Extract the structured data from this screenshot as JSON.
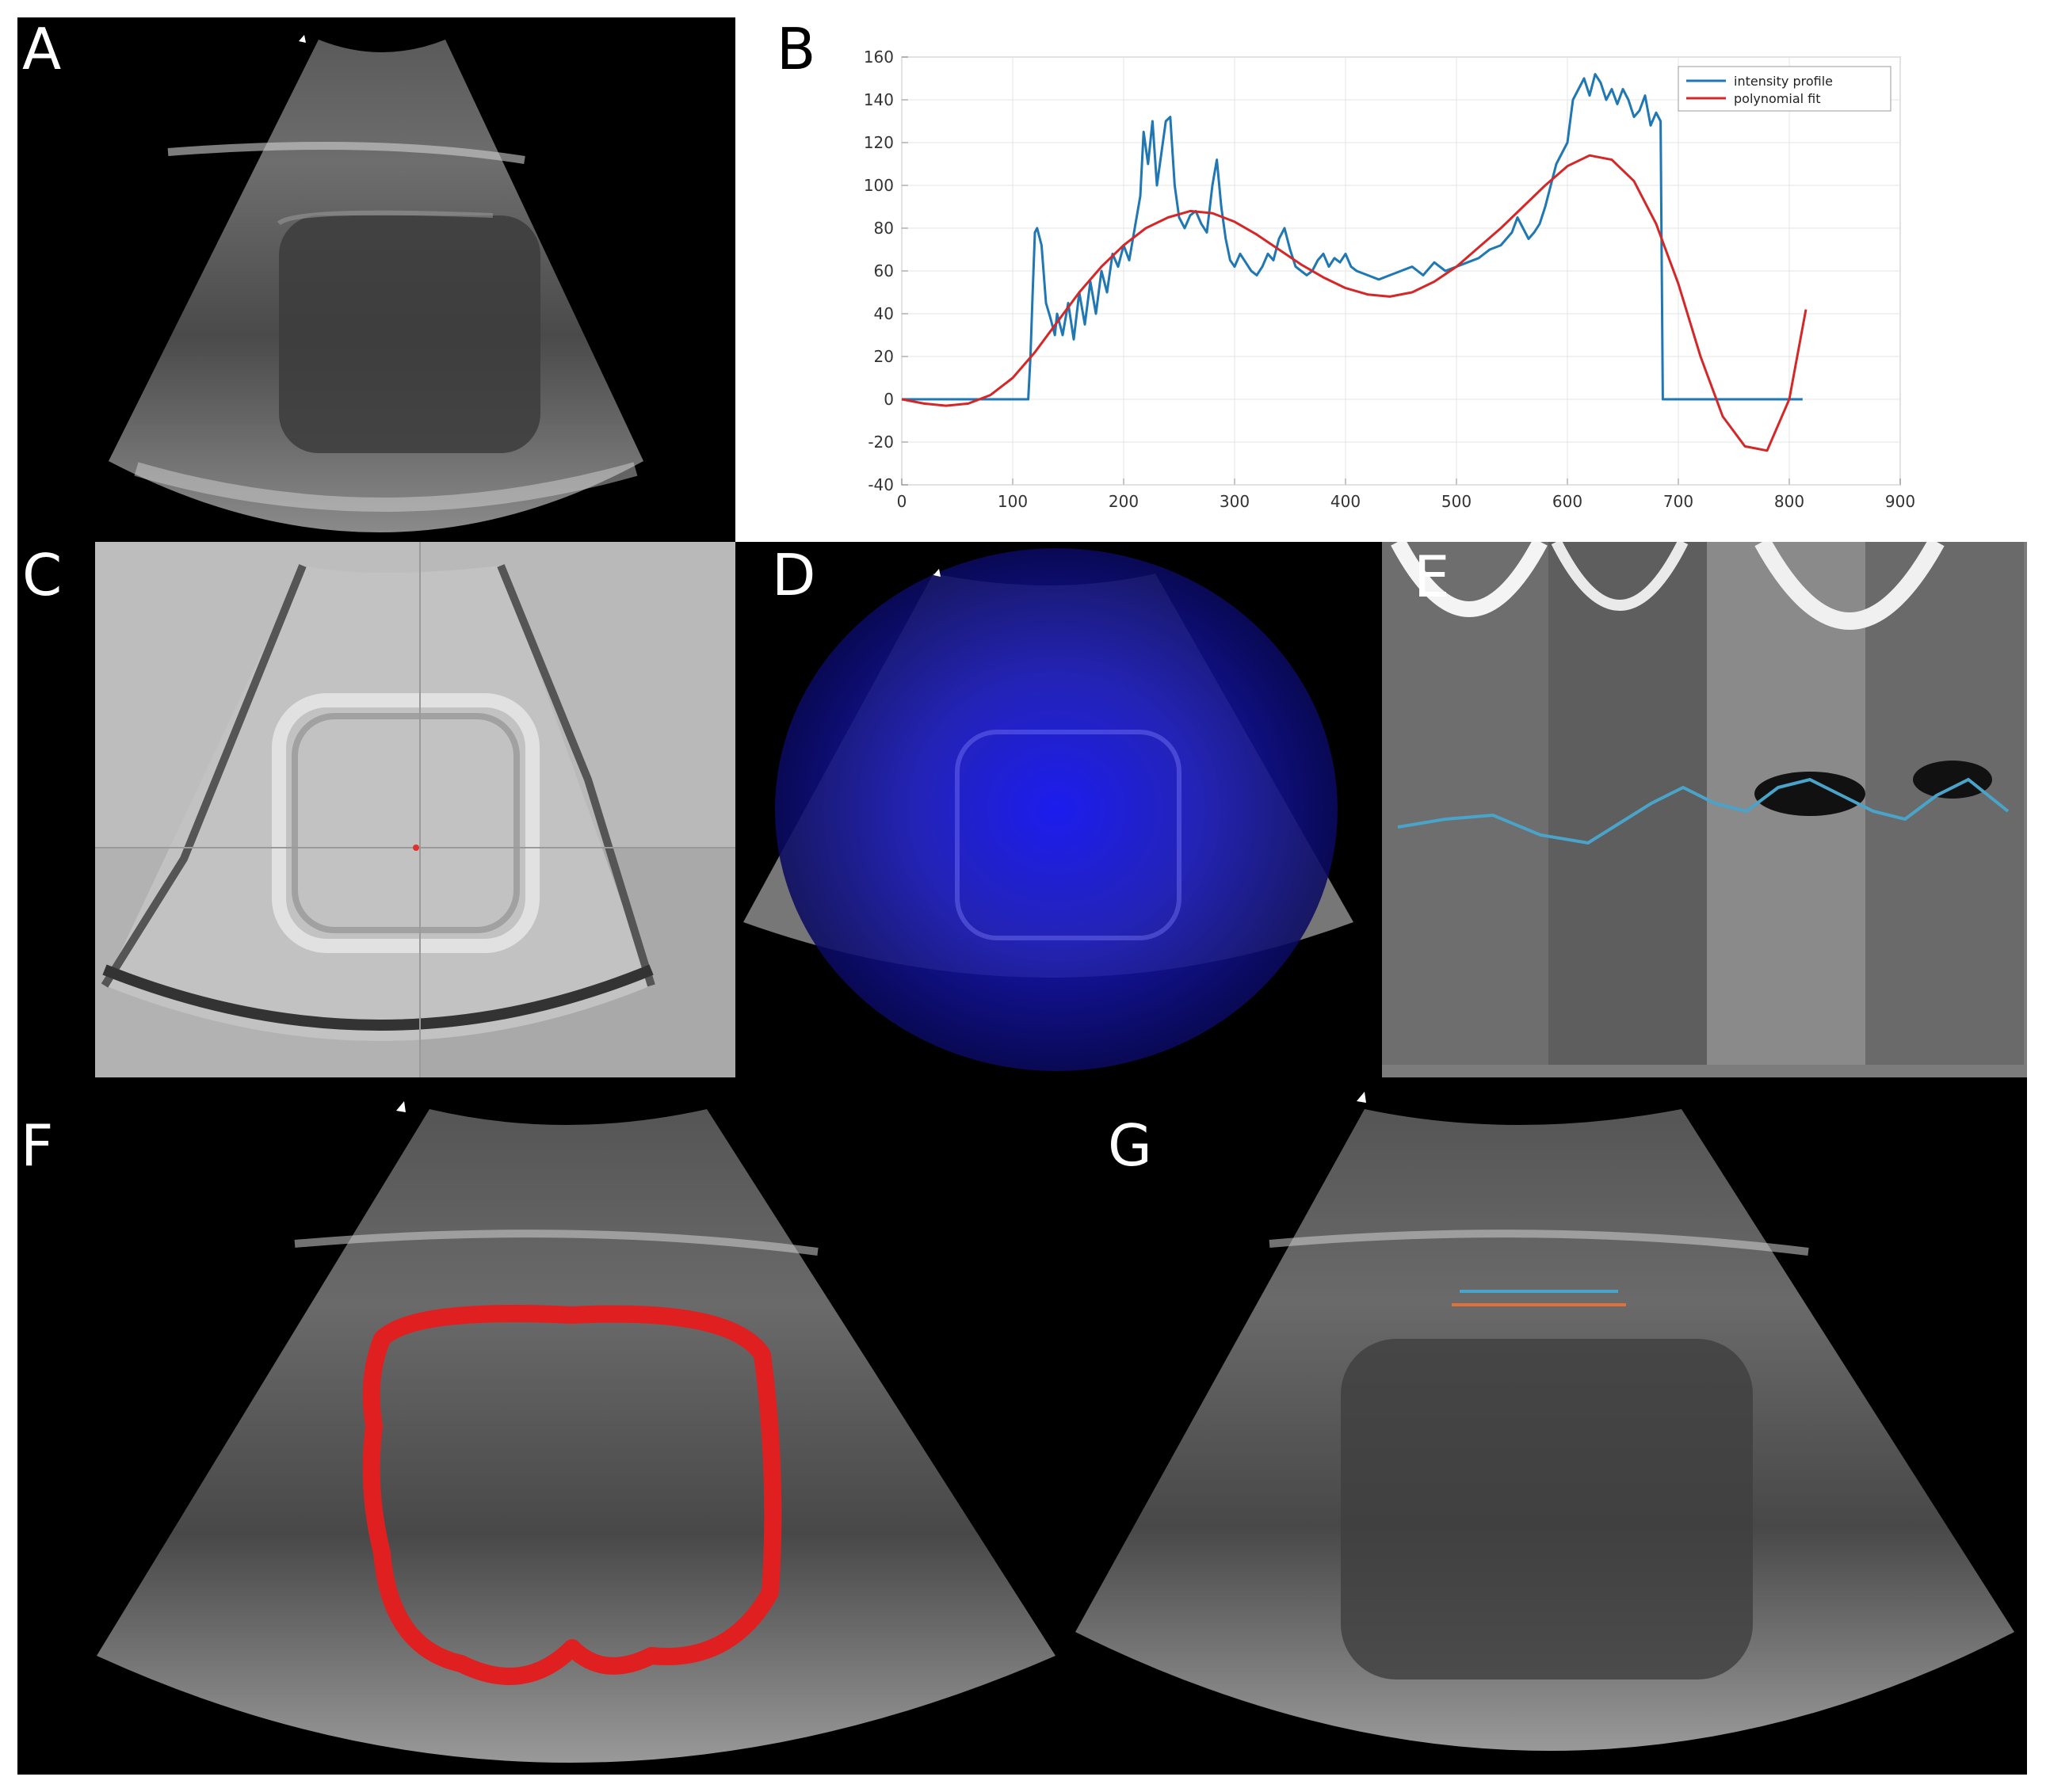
{
  "figure": {
    "panels": [
      {
        "label": "A"
      },
      {
        "label": "B"
      },
      {
        "label": "C"
      },
      {
        "label": "D"
      },
      {
        "label": "E"
      },
      {
        "label": "F"
      },
      {
        "label": "G"
      }
    ]
  },
  "colors": {
    "background": "#000000",
    "intensity_profile": "#1f77b4",
    "polynomial_fit": "#d62728",
    "contour_red": "#e02020",
    "overlay_blue": "#1010ff",
    "trace_cyan": "#4aa3c8"
  },
  "chart_data": {
    "type": "line",
    "xlim": [
      0,
      900
    ],
    "ylim": [
      -40,
      160
    ],
    "x_ticks": [
      "0",
      "100",
      "200",
      "300",
      "400",
      "500",
      "600",
      "700",
      "800",
      "900"
    ],
    "y_ticks": [
      "160",
      "140",
      "120",
      "100",
      "80",
      "60",
      "40",
      "20",
      "0",
      "-20",
      "-40"
    ],
    "legend_position": "top-right",
    "grid": true,
    "series": [
      {
        "name": "intensity profile",
        "color": "#1f77b4",
        "x": [
          0,
          114,
          116,
          118,
          120,
          122,
          126,
          130,
          134,
          138,
          140,
          145,
          150,
          155,
          160,
          165,
          170,
          175,
          180,
          185,
          190,
          195,
          200,
          205,
          210,
          215,
          218,
          222,
          226,
          230,
          234,
          238,
          242,
          246,
          250,
          255,
          260,
          265,
          270,
          275,
          280,
          284,
          288,
          292,
          296,
          300,
          305,
          310,
          315,
          320,
          325,
          330,
          335,
          340,
          345,
          350,
          355,
          360,
          365,
          370,
          375,
          380,
          385,
          390,
          395,
          400,
          405,
          410,
          420,
          430,
          440,
          450,
          460,
          470,
          480,
          490,
          500,
          510,
          520,
          530,
          540,
          550,
          555,
          560,
          565,
          570,
          575,
          580,
          585,
          590,
          595,
          600,
          605,
          610,
          615,
          620,
          625,
          630,
          635,
          640,
          645,
          650,
          655,
          660,
          665,
          670,
          675,
          680,
          684,
          686,
          700,
          750,
          800,
          812
        ],
        "y": [
          0,
          0,
          20,
          50,
          78,
          80,
          72,
          45,
          38,
          30,
          40,
          30,
          45,
          28,
          50,
          35,
          55,
          40,
          60,
          50,
          68,
          62,
          72,
          65,
          80,
          95,
          125,
          110,
          130,
          100,
          115,
          130,
          132,
          100,
          85,
          80,
          86,
          88,
          82,
          78,
          100,
          112,
          90,
          75,
          65,
          62,
          68,
          64,
          60,
          58,
          62,
          68,
          65,
          75,
          80,
          70,
          62,
          60,
          58,
          60,
          65,
          68,
          62,
          66,
          64,
          68,
          62,
          60,
          58,
          56,
          58,
          60,
          62,
          58,
          64,
          60,
          62,
          64,
          66,
          70,
          72,
          78,
          85,
          80,
          75,
          78,
          82,
          90,
          100,
          110,
          115,
          120,
          140,
          145,
          150,
          142,
          152,
          148,
          140,
          145,
          138,
          145,
          140,
          132,
          135,
          142,
          128,
          134,
          130,
          0,
          0,
          0,
          0,
          0
        ]
      },
      {
        "name": "polynomial fit",
        "color": "#d62728",
        "x": [
          0,
          20,
          40,
          60,
          80,
          100,
          120,
          140,
          160,
          180,
          200,
          220,
          240,
          260,
          280,
          300,
          320,
          340,
          360,
          380,
          400,
          420,
          440,
          460,
          480,
          500,
          520,
          540,
          560,
          580,
          600,
          620,
          640,
          660,
          680,
          700,
          720,
          740,
          760,
          780,
          800,
          815
        ],
        "y": [
          0,
          -2,
          -3,
          -2,
          2,
          10,
          22,
          36,
          50,
          62,
          72,
          80,
          85,
          88,
          87,
          83,
          77,
          70,
          63,
          57,
          52,
          49,
          48,
          50,
          55,
          62,
          71,
          80,
          90,
          100,
          109,
          114,
          112,
          102,
          82,
          54,
          20,
          -8,
          -22,
          -24,
          0,
          42
        ]
      }
    ]
  }
}
